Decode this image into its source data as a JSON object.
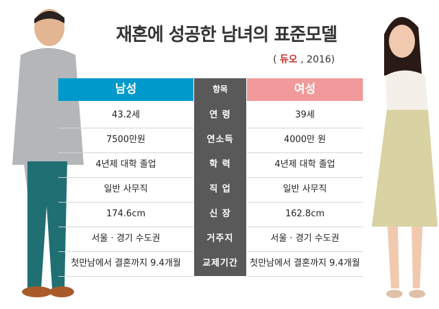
{
  "title": "재혼에 성공한 남녀의 표준모델",
  "source": {
    "open": "(",
    "logo": "듀오",
    "rest": ", 2016)"
  },
  "headers": {
    "male": "남성",
    "item": "항목",
    "female": "여성"
  },
  "colors": {
    "male": "#0099cc",
    "item": "#595959",
    "female": "#f09a9b",
    "logo": "#c8312c"
  },
  "rows": [
    {
      "item": "연  령",
      "male": "43.2세",
      "female": "39세"
    },
    {
      "item": "연소득",
      "male": "7500만원",
      "female": "4000만 원"
    },
    {
      "item": "학  력",
      "male": "4년제 대학 졸업",
      "female": "4년제 대학 졸업"
    },
    {
      "item": "직  업",
      "male": "일반 사무직",
      "female": "일반 사무직"
    },
    {
      "item": "신  장",
      "male": "174.6cm",
      "female": "162.8cm"
    },
    {
      "item": "거주지",
      "male": "서울 · 경기 수도권",
      "female": "서울 · 경기 수도권"
    },
    {
      "item": "교제기간",
      "male": "첫만남에서 결혼까지 9.4개월",
      "female": "첫만남에서 결혼까지 9.4개월"
    }
  ]
}
